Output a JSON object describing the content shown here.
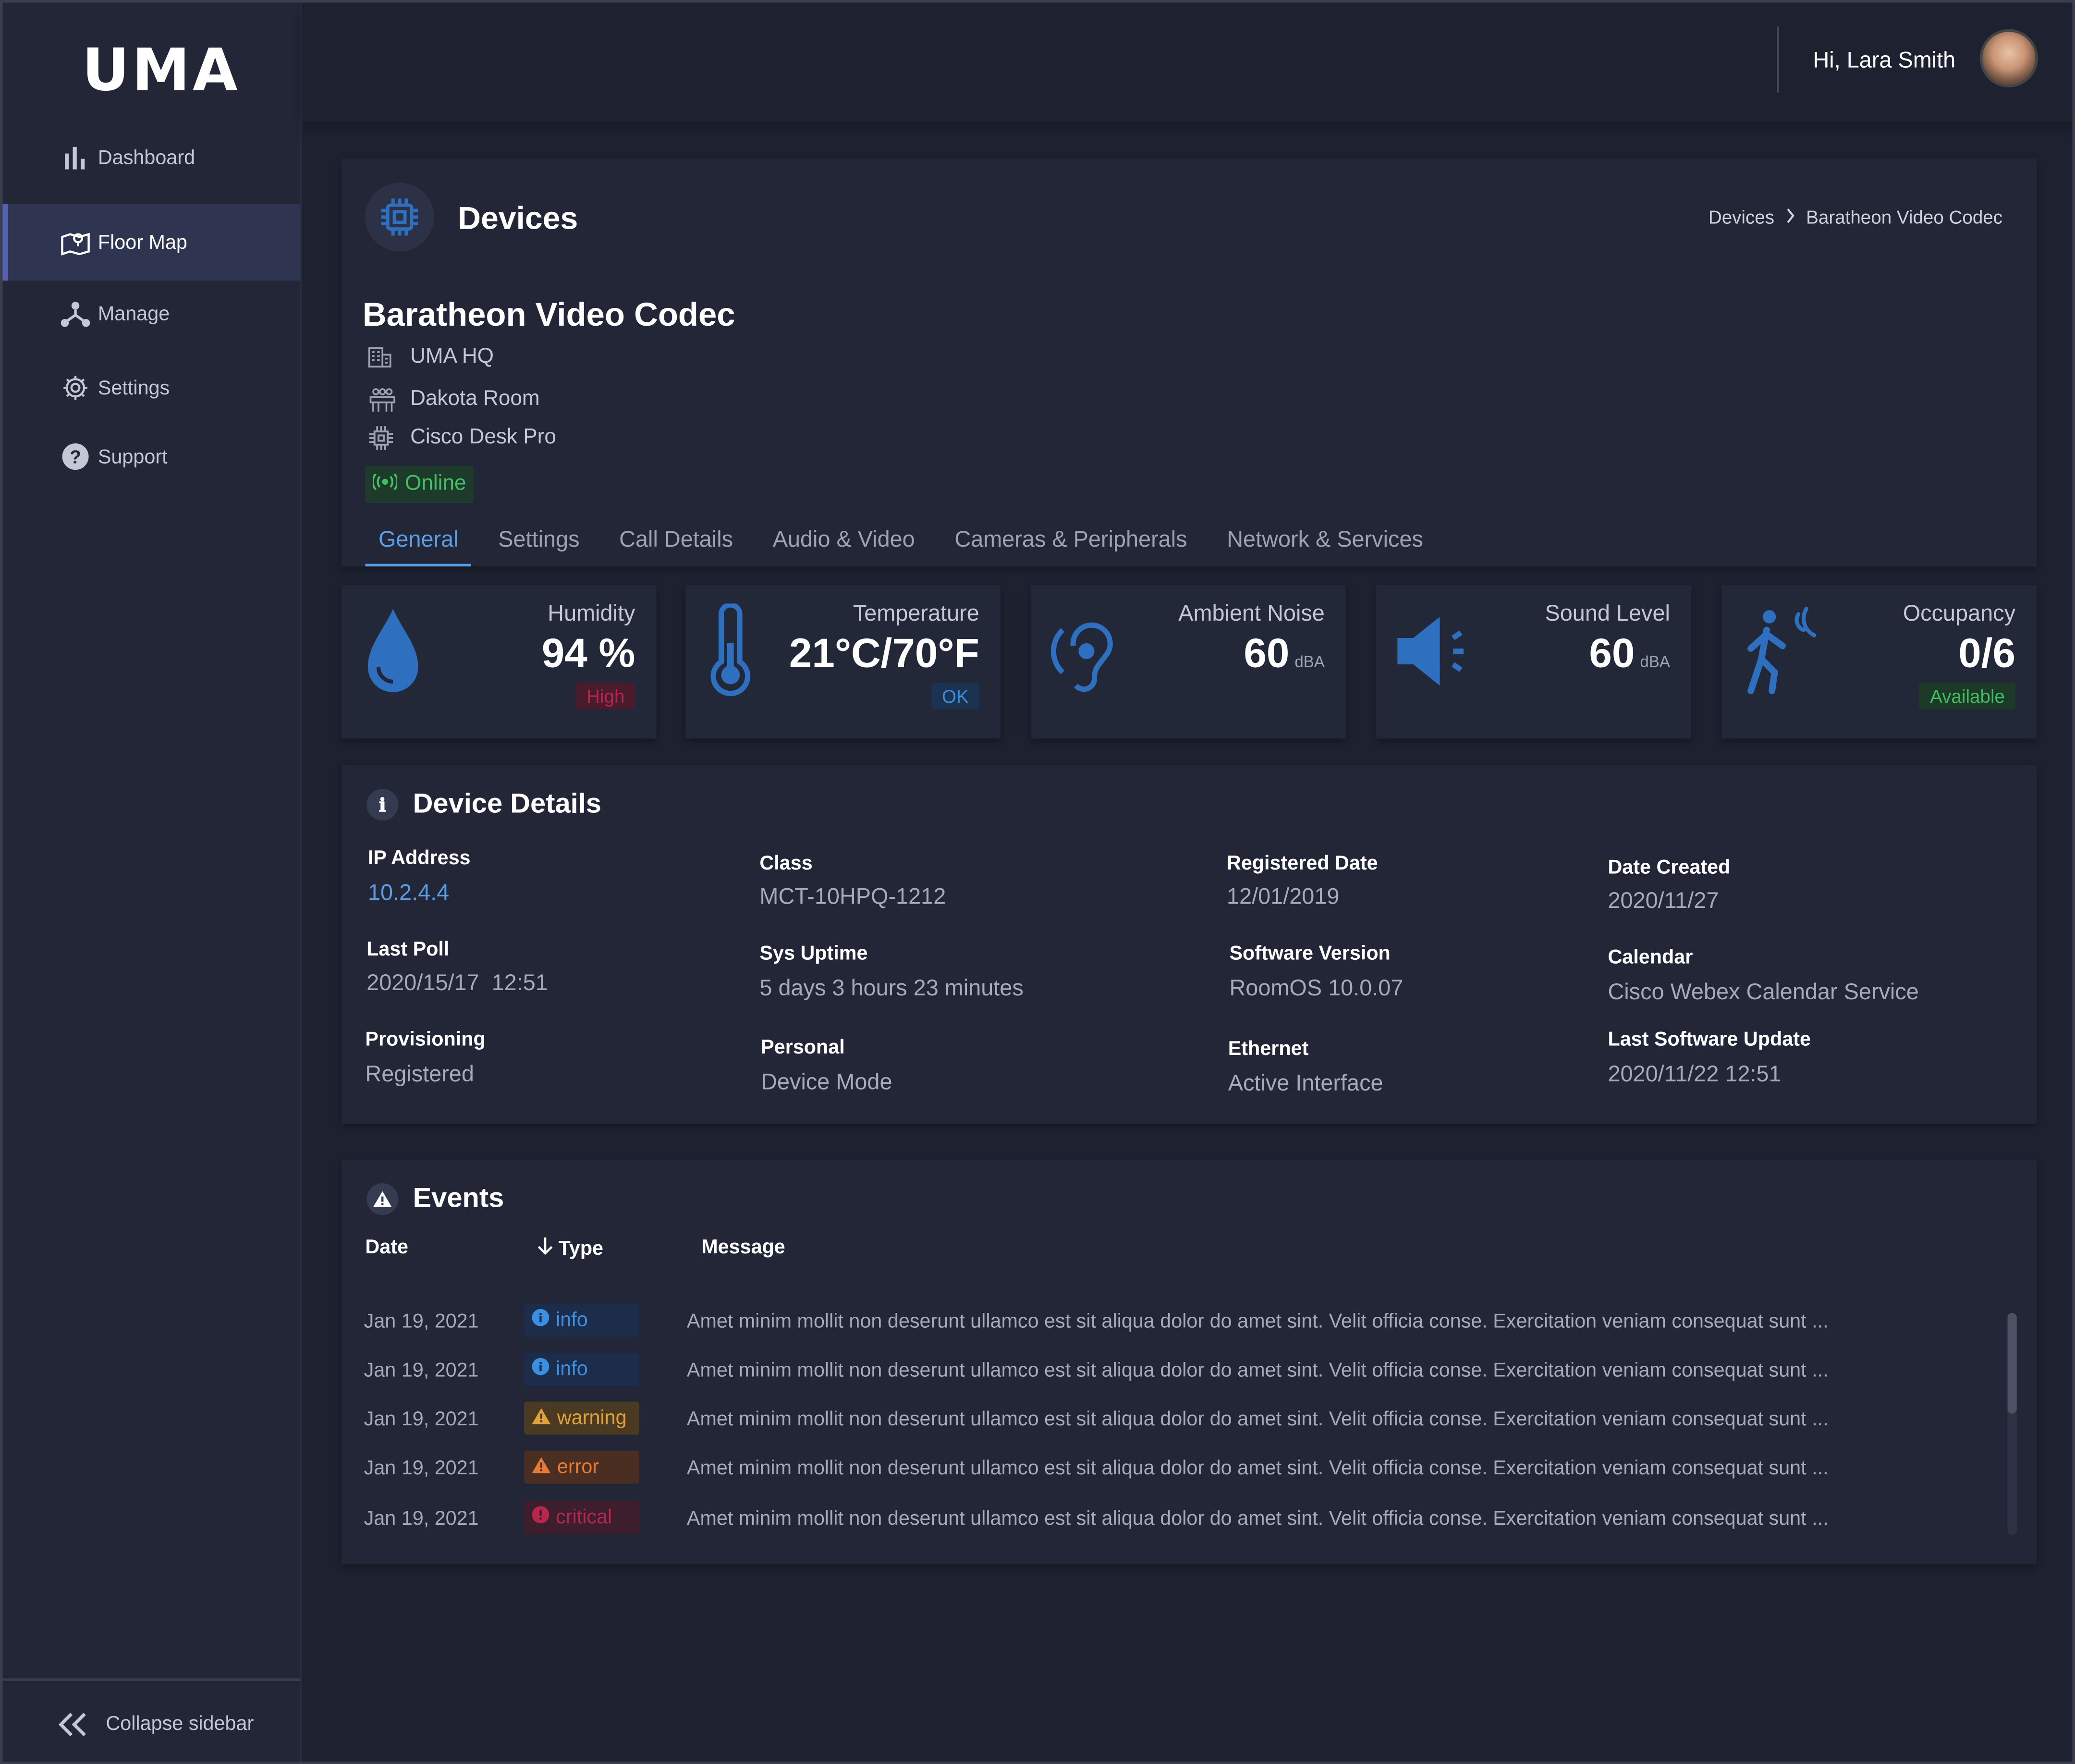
{
  "app": {
    "logo": "UMA"
  },
  "sidebar": {
    "items": [
      {
        "label": "Dashboard",
        "icon": "bar-chart-icon"
      },
      {
        "label": "Floor Map",
        "icon": "floor-map-icon",
        "active": true
      },
      {
        "label": "Manage",
        "icon": "network-icon"
      },
      {
        "label": "Settings",
        "icon": "gear-icon"
      },
      {
        "label": "Support",
        "icon": "help-icon"
      }
    ],
    "collapse_label": "Collapse sidebar"
  },
  "user": {
    "greeting": "Hi, Lara Smith"
  },
  "page": {
    "title": "Devices",
    "breadcrumb": [
      "Devices",
      "Baratheon Video Codec"
    ]
  },
  "device": {
    "name": "Baratheon Video Codec",
    "location": "UMA HQ",
    "room": "Dakota Room",
    "model": "Cisco Desk Pro",
    "status": "Online"
  },
  "tabs": [
    "General",
    "Settings",
    "Call Details",
    "Audio & Video",
    "Cameras & Peripherals",
    "Network & Services"
  ],
  "metrics": {
    "humidity": {
      "label": "Humidity",
      "value": "94 %",
      "badge": "High"
    },
    "temperature": {
      "label": "Temperature",
      "value_c": "21",
      "value_f": "70",
      "badge": "OK"
    },
    "noise": {
      "label": "Ambient Noise",
      "value": "60",
      "unit": "dBA"
    },
    "sound": {
      "label": "Sound Level",
      "value": "60",
      "unit": "dBA"
    },
    "occupancy": {
      "label": "Occupancy",
      "value": "0/6",
      "badge": "Available"
    }
  },
  "details": {
    "title": "Device Details",
    "ip_label": "IP Address",
    "ip": "10.2.4.4",
    "class_label": "Class",
    "class": "MCT-10HPQ-1212",
    "registered_label": "Registered Date",
    "registered": "12/01/2019",
    "created_label": "Date Created",
    "created": "2020/11/27",
    "poll_label": "Last Poll",
    "poll": "2020/15/17  12:51",
    "uptime_label": "Sys Uptime",
    "uptime": "5 days 3 hours 23 minutes",
    "software_label": "Software Version",
    "software": "RoomOS 10.0.07",
    "calendar_label": "Calendar",
    "calendar": "Cisco Webex Calendar Service",
    "provisioning_label": "Provisioning",
    "provisioning": "Registered",
    "personal_label": "Personal",
    "personal": "Device Mode",
    "ethernet_label": "Ethernet",
    "ethernet": "Active Interface",
    "last_update_label": "Last Software Update",
    "last_update": "2020/11/22 12:51"
  },
  "events": {
    "title": "Events",
    "columns": {
      "date": "Date",
      "type": "Type",
      "message": "Message"
    },
    "rows": [
      {
        "date": "Jan 19, 2021",
        "type": "info",
        "message": "Amet minim mollit non deserunt ullamco est sit aliqua dolor do amet sint. Velit officia conse. Exercitation veniam consequat sunt ..."
      },
      {
        "date": "Jan 19, 2021",
        "type": "info",
        "message": "Amet minim mollit non deserunt ullamco est sit aliqua dolor do amet sint. Velit officia conse. Exercitation veniam consequat sunt ..."
      },
      {
        "date": "Jan 19, 2021",
        "type": "warning",
        "message": "Amet minim mollit non deserunt ullamco est sit aliqua dolor do amet sint. Velit officia conse. Exercitation veniam consequat sunt ..."
      },
      {
        "date": "Jan 19, 2021",
        "type": "error",
        "message": "Amet minim mollit non deserunt ullamco est sit aliqua dolor do amet sint. Velit officia conse. Exercitation veniam consequat sunt ..."
      },
      {
        "date": "Jan 19, 2021",
        "type": "critical",
        "message": "Amet minim mollit non deserunt ullamco est sit aliqua dolor do amet sint. Velit officia conse. Exercitation veniam consequat sunt ..."
      }
    ]
  },
  "colors": {
    "accent": "#5b9ee6",
    "icon_blue": "#2f6fc0",
    "bg": "#1e2230",
    "panel": "#222636"
  }
}
